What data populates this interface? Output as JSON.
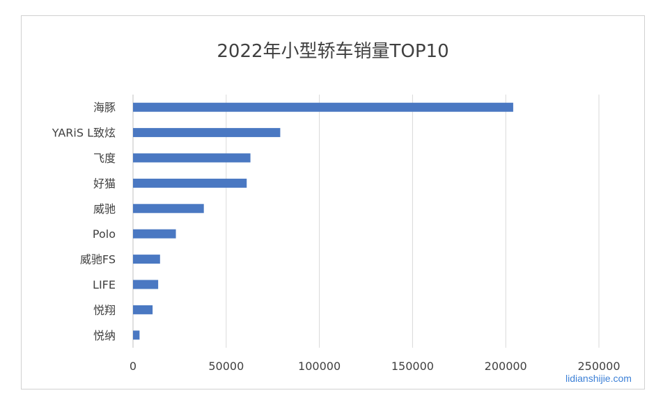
{
  "chart_data": {
    "type": "bar",
    "orientation": "horizontal",
    "title": "2022年小型轿车销量TOP10",
    "categories": [
      "海豚",
      "YARiS L致炫",
      "飞度",
      "好猫",
      "威驰",
      "Polo",
      "威驰FS",
      "LIFE",
      "悦翔",
      "悦纳"
    ],
    "values": [
      204000,
      79000,
      63000,
      61000,
      38000,
      23000,
      14500,
      13500,
      10500,
      3500
    ],
    "xlim": [
      0,
      250000
    ],
    "xticks": [
      "0",
      "50000",
      "100000",
      "150000",
      "200000",
      "250000"
    ],
    "xlabel": "",
    "ylabel": "",
    "grid": "vertical",
    "legend": "none",
    "bar_color": "#4a78c2",
    "grid_color": "#d9d9d9"
  },
  "watermark": {
    "text": "lidianshijie.com",
    "color": "#3b7fd6"
  }
}
